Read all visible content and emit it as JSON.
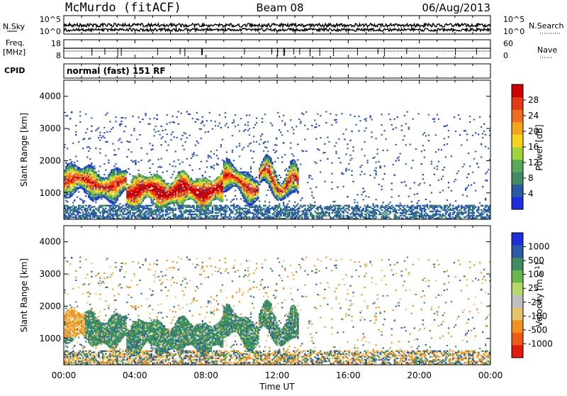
{
  "header": {
    "station": "McMurdo (fitACF)",
    "beam": "Beam 08",
    "date": "06/Aug/2013"
  },
  "panels": {
    "nsky": {
      "label": "N.Sky",
      "left_ticks": [
        "10^5",
        "10^0"
      ],
      "right_label": "N.Search",
      "right_ticks": [
        "10^5",
        "10^0"
      ]
    },
    "freq": {
      "label_line1": "Freq.",
      "label_line2": "[MHz]",
      "left_ticks": [
        "18",
        "8"
      ],
      "right_label": "Nave",
      "right_ticks": [
        "60",
        "0"
      ]
    },
    "cpid": {
      "label": "CPID",
      "value": "normal (fast) 151 RF"
    }
  },
  "colors": {
    "power_scale": [
      "#1a2fe0",
      "#2a5aa8",
      "#3f8c63",
      "#5aa85a",
      "#9fd43c",
      "#f7d321",
      "#f4a321",
      "#ef6d1f",
      "#e53a19",
      "#cc0000"
    ],
    "velocity_scale": [
      "#1e2fd9",
      "#2a5aa8",
      "#3f8c63",
      "#68b84b",
      "#b6d86b",
      "#bfbfbf",
      "#e6c46b",
      "#f29020",
      "#ee5a18",
      "#e01c10"
    ]
  },
  "chart_data": [
    {
      "type": "heatmap",
      "title": "",
      "xlabel": "",
      "ylabel": "Slant Range [km]",
      "x_ticks": [
        "00:00",
        "04:00",
        "08:00",
        "12:00",
        "16:00",
        "20:00",
        "00:00"
      ],
      "x_range_hours": [
        0,
        24
      ],
      "ylim": [
        180,
        4500
      ],
      "y_ticks": [
        1000,
        2000,
        3000,
        4000
      ],
      "colorbar": {
        "label": "Power [dB]",
        "ticks": [
          4,
          8,
          12,
          16,
          20,
          24,
          28
        ],
        "range": [
          0,
          32
        ]
      },
      "echo_regions": [
        {
          "t_start": 0,
          "t_end": 13.2,
          "range_km": [
            600,
            2100
          ],
          "level": "high"
        },
        {
          "t_start": 3.5,
          "t_end": 9.0,
          "range_km": [
            650,
            1400
          ],
          "level": "very high"
        },
        {
          "t_start": 0,
          "t_end": 24,
          "range_km": [
            180,
            3500
          ],
          "level": "sparse low"
        }
      ]
    },
    {
      "type": "heatmap",
      "title": "",
      "xlabel": "Time UT",
      "ylabel": "Slant Range [km]",
      "x_ticks": [
        "00:00",
        "04:00",
        "08:00",
        "12:00",
        "16:00",
        "20:00",
        "00:00"
      ],
      "x_range_hours": [
        0,
        24
      ],
      "ylim": [
        180,
        4500
      ],
      "y_ticks": [
        1000,
        2000,
        3000,
        4000
      ],
      "colorbar": {
        "label": "Velocity [m s^-1]",
        "tick_labels": [
          "1000",
          "500",
          "100",
          "25",
          "-25",
          "-100",
          "-500",
          "-1000"
        ]
      },
      "echo_regions": [
        {
          "t_start": 0,
          "t_end": 13.2,
          "range_km": [
            600,
            2100
          ],
          "velocity_class": "100 to 500"
        },
        {
          "t_start": 0,
          "t_end": 1.2,
          "range_km": [
            1000,
            1800
          ],
          "velocity_class": "-500 to -100"
        },
        {
          "t_start": 0,
          "t_end": 24,
          "range_km": [
            180,
            3500
          ],
          "velocity_class": "mixed sparse"
        }
      ]
    }
  ]
}
